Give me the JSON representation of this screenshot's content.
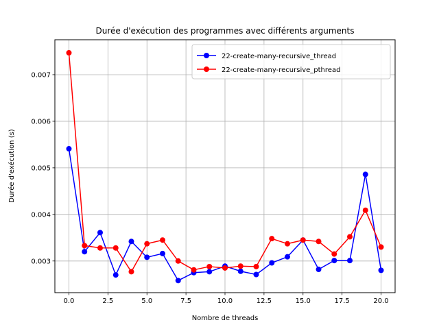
{
  "chart_data": {
    "type": "line",
    "title": "Durée d'exécution des programmes avec différents arguments",
    "xlabel": "Nombre de threads",
    "ylabel": "Durée d'exécution (s)",
    "xlim": [
      -0.9,
      20.9
    ],
    "ylim": [
      0.00232,
      0.00775
    ],
    "x_ticks": [
      0,
      2.5,
      5,
      7.5,
      10,
      12.5,
      15,
      17.5,
      20
    ],
    "x_tick_labels": [
      "0.0",
      "2.5",
      "5.0",
      "7.5",
      "10.0",
      "12.5",
      "15.0",
      "17.5",
      "20.0"
    ],
    "y_ticks": [
      0.003,
      0.004,
      0.005,
      0.006,
      0.007
    ],
    "y_tick_labels": [
      "0.003",
      "0.004",
      "0.005",
      "0.006",
      "0.007"
    ],
    "grid": true,
    "legend_position": "top-right",
    "x": [
      0,
      1,
      2,
      3,
      4,
      5,
      6,
      7,
      8,
      9,
      10,
      11,
      12,
      13,
      14,
      15,
      16,
      17,
      18,
      19,
      20
    ],
    "series": [
      {
        "name": "22-create-many-recursive_thread",
        "color": "#0000ff",
        "values": [
          0.00541,
          0.0032,
          0.00361,
          0.0027,
          0.00342,
          0.00308,
          0.00316,
          0.00258,
          0.00275,
          0.00277,
          0.00289,
          0.00278,
          0.00271,
          0.00296,
          0.00309,
          0.00345,
          0.00282,
          0.00301,
          0.00301,
          0.00486,
          0.0028
        ]
      },
      {
        "name": "22-create-many-recursive_pthread",
        "color": "#ff0000",
        "values": [
          0.00747,
          0.00333,
          0.00328,
          0.00328,
          0.00277,
          0.00337,
          0.00345,
          0.003,
          0.00281,
          0.00288,
          0.00285,
          0.00289,
          0.00288,
          0.00348,
          0.00337,
          0.00345,
          0.00342,
          0.00315,
          0.00352,
          0.00409,
          0.0033
        ]
      }
    ]
  }
}
